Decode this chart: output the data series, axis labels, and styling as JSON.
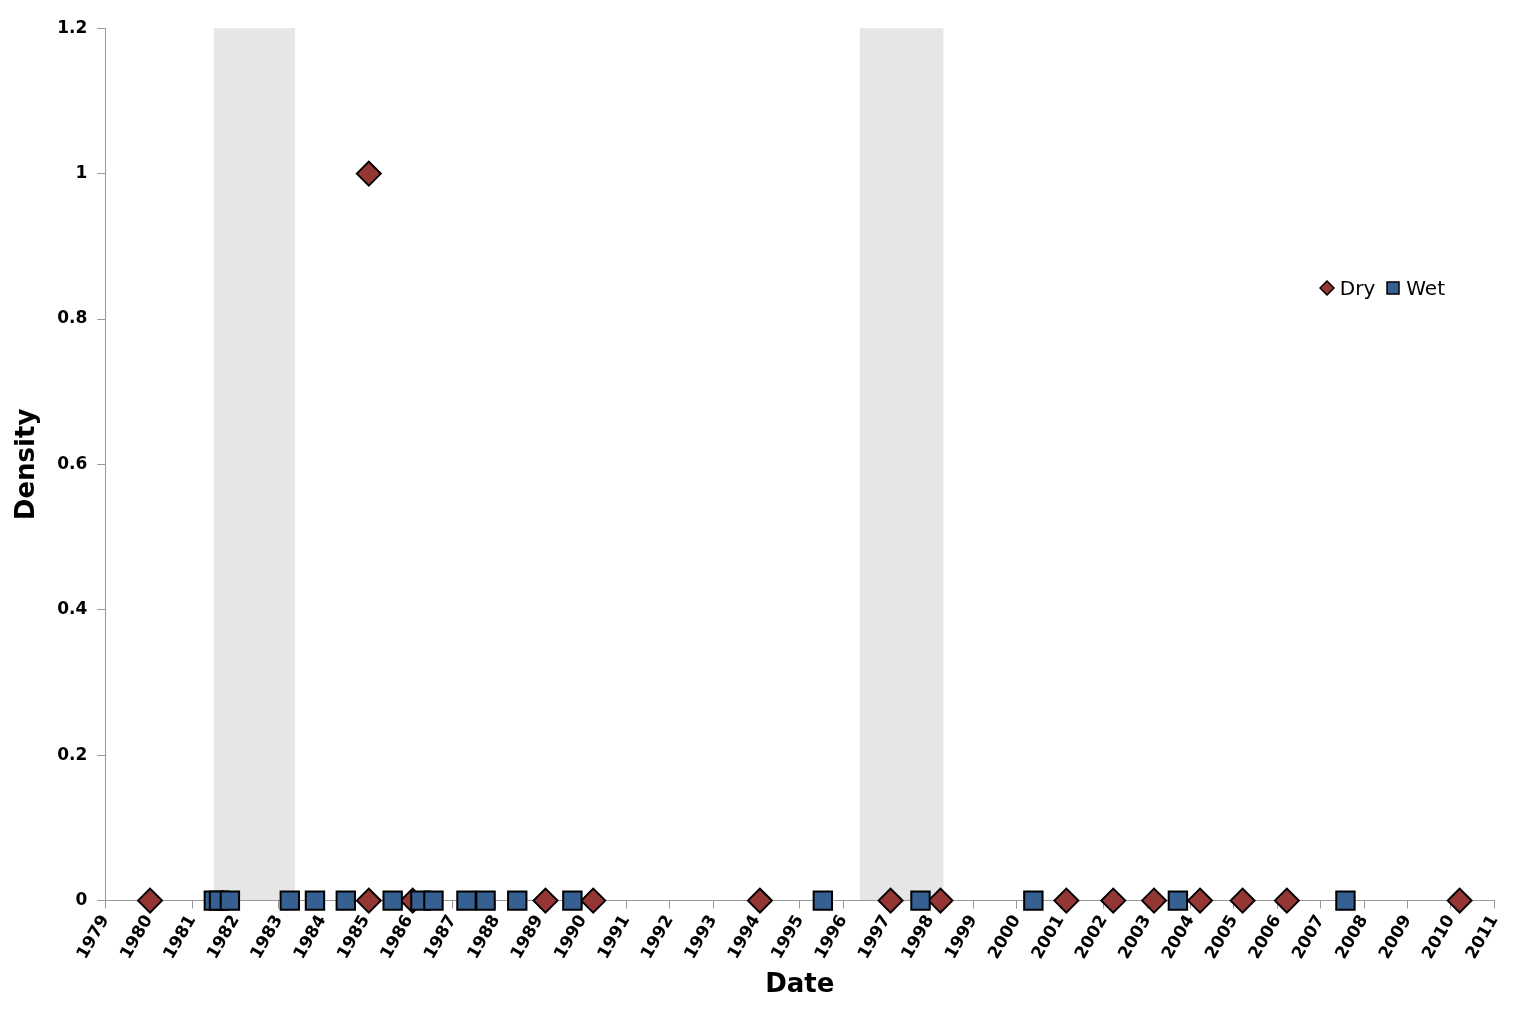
{
  "chart_data": {
    "type": "scatter",
    "xlabel": "Date",
    "ylabel": "Density",
    "xlim": [
      1979,
      2011
    ],
    "xticks": [
      1979,
      1980,
      1981,
      1982,
      1983,
      1984,
      1985,
      1986,
      1987,
      1988,
      1989,
      1990,
      1991,
      1992,
      1993,
      1994,
      1995,
      1996,
      1997,
      1998,
      1999,
      2000,
      2001,
      2002,
      2003,
      2004,
      2005,
      2006,
      2007,
      2008,
      2009,
      2010,
      2011
    ],
    "ylim": [
      0,
      1.2
    ],
    "yticks": [
      0,
      0.2,
      0.4,
      0.6,
      0.8,
      1,
      1.2
    ],
    "grid": false,
    "legend": "right",
    "bands": [
      {
        "axis": "x",
        "from": 1981.5,
        "to": 1983.37,
        "color": "#e6e6e6"
      },
      {
        "axis": "x",
        "from": 1996.38,
        "to": 1998.31,
        "color": "#e6e6e6"
      }
    ],
    "series": [
      {
        "name": "Dry",
        "color": "#943634",
        "marker": "diamond",
        "x": [
          1980.03,
          1985.07,
          1985.07,
          1986.08,
          1989.14,
          1990.24,
          1994.08,
          1997.09,
          1998.24,
          2001.14,
          2002.22,
          2003.16,
          2004.22,
          2005.2,
          2006.22,
          2010.2
        ],
        "values": [
          0,
          1,
          0,
          0,
          0,
          0,
          0,
          0,
          0,
          0,
          0,
          0,
          0,
          0,
          0,
          0
        ]
      },
      {
        "name": "Wet",
        "color": "#366092",
        "marker": "square",
        "x": [
          1981.5,
          1981.62,
          1981.87,
          1983.25,
          1983.83,
          1984.54,
          1985.62,
          1986.26,
          1986.56,
          1987.32,
          1987.76,
          1988.49,
          1989.76,
          1995.53,
          1997.78,
          2000.38,
          2003.71,
          2007.57
        ],
        "values": [
          0,
          0,
          0,
          0,
          0,
          0,
          0,
          0,
          0,
          0,
          0,
          0,
          0,
          0,
          0,
          0,
          0,
          0
        ]
      }
    ]
  }
}
